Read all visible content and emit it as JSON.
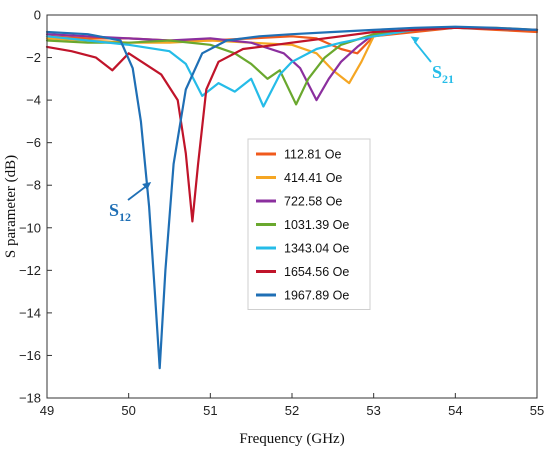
{
  "chart_data": {
    "type": "line",
    "title": "",
    "xlabel": "Frequency (GHz)",
    "ylabel": "S parameter (dB)",
    "xlim": [
      49,
      55
    ],
    "ylim": [
      -18,
      0
    ],
    "x_ticks": [
      49,
      50,
      51,
      52,
      53,
      54,
      55
    ],
    "y_ticks": [
      0,
      -2,
      -4,
      -6,
      -8,
      -10,
      -12,
      -14,
      -16,
      -18
    ],
    "grid": false,
    "legend_position": "center",
    "series": [
      {
        "name": "112.81 Oe",
        "color": "#f05a1c",
        "x": [
          49,
          49.5,
          50,
          50.5,
          51,
          51.5,
          52,
          52.3,
          52.6,
          52.8,
          53,
          53.5,
          54,
          54.5,
          55
        ],
        "y": [
          -1.0,
          -1.1,
          -1.1,
          -1.2,
          -1.2,
          -1.1,
          -1.0,
          -1.1,
          -1.6,
          -1.8,
          -1.0,
          -0.8,
          -0.6,
          -0.7,
          -0.8
        ]
      },
      {
        "name": "414.41 Oe",
        "color": "#f5a623",
        "x": [
          49,
          49.5,
          50,
          50.5,
          51,
          51.5,
          52,
          52.3,
          52.5,
          52.7,
          52.85,
          53,
          53.5,
          54,
          54.5,
          55
        ],
        "y": [
          -1.1,
          -1.2,
          -1.3,
          -1.3,
          -1.2,
          -1.3,
          -1.4,
          -1.8,
          -2.6,
          -3.2,
          -2.2,
          -1.0,
          -0.7,
          -0.6,
          -0.6,
          -0.7
        ]
      },
      {
        "name": "722.58 Oe",
        "color": "#8b2f9e",
        "x": [
          49,
          49.5,
          50,
          50.5,
          51,
          51.5,
          51.9,
          52.1,
          52.3,
          52.45,
          52.6,
          52.8,
          53,
          53.5,
          54,
          55
        ],
        "y": [
          -0.9,
          -1.0,
          -1.1,
          -1.2,
          -1.1,
          -1.3,
          -1.8,
          -2.5,
          -4.0,
          -3.0,
          -2.2,
          -1.5,
          -0.9,
          -0.7,
          -0.6,
          -0.7
        ]
      },
      {
        "name": "1031.39 Oe",
        "color": "#6aa82e",
        "x": [
          49,
          49.5,
          50,
          50.5,
          51,
          51.3,
          51.5,
          51.7,
          51.85,
          52.05,
          52.2,
          52.4,
          52.6,
          53,
          53.5,
          54,
          55
        ],
        "y": [
          -1.2,
          -1.3,
          -1.3,
          -1.2,
          -1.4,
          -1.8,
          -2.3,
          -3.0,
          -2.6,
          -4.2,
          -3.0,
          -2.0,
          -1.4,
          -0.9,
          -0.7,
          -0.6,
          -0.7
        ]
      },
      {
        "name": "1343.04 Oe",
        "color": "#25bce8",
        "x": [
          49,
          49.5,
          50,
          50.5,
          50.7,
          50.9,
          51.1,
          51.3,
          51.5,
          51.65,
          51.85,
          52.0,
          52.3,
          52.6,
          53,
          53.5,
          54,
          55
        ],
        "y": [
          -1.0,
          -1.2,
          -1.4,
          -1.7,
          -2.3,
          -3.8,
          -3.2,
          -3.6,
          -3.0,
          -4.3,
          -2.8,
          -2.2,
          -1.6,
          -1.3,
          -1.0,
          -0.7,
          -0.6,
          -0.7
        ]
      },
      {
        "name": "1654.56 Oe",
        "color": "#c0142a",
        "x": [
          49,
          49.3,
          49.6,
          49.8,
          50.0,
          50.2,
          50.4,
          50.6,
          50.7,
          50.78,
          50.85,
          50.95,
          51.1,
          51.4,
          51.8,
          52.2,
          52.6,
          53,
          53.5,
          54,
          55
        ],
        "y": [
          -1.5,
          -1.7,
          -2.0,
          -2.6,
          -1.8,
          -2.3,
          -2.8,
          -4.0,
          -6.5,
          -9.7,
          -7.0,
          -3.5,
          -2.2,
          -1.6,
          -1.4,
          -1.2,
          -1.0,
          -0.8,
          -0.7,
          -0.6,
          -0.7
        ]
      },
      {
        "name": "1967.89 Oe",
        "color": "#1f6fb5",
        "x": [
          49,
          49.5,
          49.9,
          50.05,
          50.15,
          50.25,
          50.32,
          50.38,
          50.45,
          50.55,
          50.7,
          50.9,
          51.2,
          51.6,
          52,
          52.5,
          53,
          53.5,
          54,
          54.5,
          55
        ],
        "y": [
          -0.8,
          -0.9,
          -1.2,
          -2.5,
          -5.0,
          -9.0,
          -13.0,
          -16.6,
          -12.0,
          -7.0,
          -3.5,
          -1.8,
          -1.2,
          -1.0,
          -0.9,
          -0.8,
          -0.7,
          -0.6,
          -0.55,
          -0.6,
          -0.7
        ]
      }
    ],
    "annotations": [
      {
        "main": "S",
        "sub": "12",
        "color": "#1f6fb5",
        "points_to": [
          50.3,
          -7.8
        ]
      },
      {
        "main": "S",
        "sub": "21",
        "color": "#25bce8",
        "points_to": [
          53.5,
          -1.2
        ]
      }
    ]
  }
}
